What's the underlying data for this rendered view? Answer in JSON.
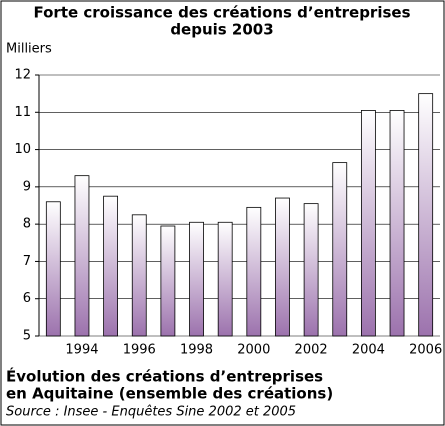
{
  "chart_data": {
    "type": "bar",
    "title": [
      "Forte croissance des créations d’entreprises",
      "depuis 2003"
    ],
    "y_label": "Milliers",
    "caption": [
      "Évolution des créations d’entreprises",
      "en Aquitaine (ensemble des créations)"
    ],
    "source": "Source : Insee - Enquêtes Sine 2002 et 2005",
    "categories": [
      null,
      "1994",
      null,
      "1996",
      null,
      "1998",
      null,
      "2000",
      null,
      "2002",
      null,
      "2004",
      null,
      "2006"
    ],
    "values": [
      8.6,
      9.3,
      8.75,
      8.25,
      7.95,
      8.05,
      8.05,
      8.45,
      8.7,
      8.55,
      9.65,
      11.05,
      11.05,
      11.5
    ],
    "color": "#9c72ad",
    "ylim": [
      5,
      12
    ],
    "yticks": [
      5,
      6,
      7,
      8,
      9,
      10,
      11,
      12
    ],
    "grid": true
  }
}
